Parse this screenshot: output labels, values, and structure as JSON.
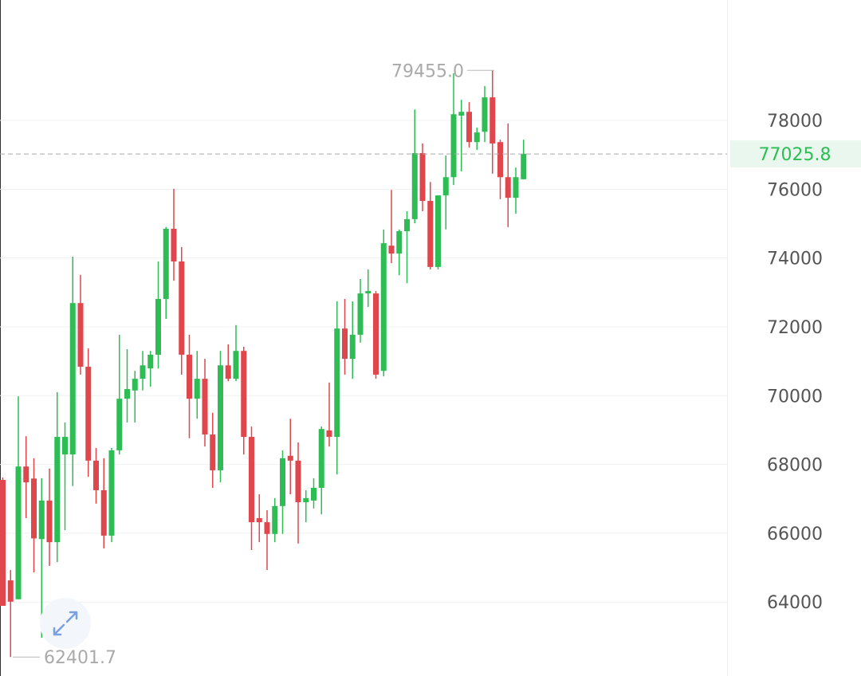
{
  "chart_data": {
    "type": "candlestick",
    "open": [
      67550,
      64630,
      64080,
      67940,
      67590,
      65830,
      66950,
      65740,
      68290,
      68290,
      72690,
      70840,
      68110,
      67250,
      65930,
      68410,
      69910,
      70150,
      70490,
      70790,
      71190,
      72810,
      74850,
      73900,
      71190,
      69910,
      70490,
      68870,
      67830,
      70880,
      70490,
      71300,
      68800,
      66440,
      66320,
      65980,
      66790,
      68250,
      68110,
      66900,
      66950,
      67320,
      68990,
      68800,
      71950,
      71070,
      71770,
      72970,
      72970,
      70720,
      74360,
      74130,
      74780,
      75130,
      77050,
      75660,
      73740,
      75820,
      76350,
      78140,
      78250,
      77370,
      77670,
      78670,
      77370,
      76350,
      75750,
      76290
    ],
    "high": [
      67620,
      64930,
      69980,
      68820,
      68180,
      67600,
      67880,
      70100,
      69220,
      74040,
      73510,
      71370,
      68480,
      68180,
      68480,
      71770,
      71350,
      70720,
      71300,
      71300,
      73900,
      74900,
      76010,
      74320,
      71770,
      71300,
      71070,
      69500,
      71300,
      71490,
      72050,
      71420,
      69100,
      67130,
      66670,
      67020,
      68410,
      69330,
      68640,
      67250,
      67600,
      69100,
      70380,
      72740,
      72810,
      72740,
      73390,
      73670,
      73040,
      74830,
      75980,
      74830,
      75360,
      78320,
      77330,
      76210,
      75820,
      76980,
      79370,
      78600,
      78530,
      77790,
      79000,
      79455.0,
      77440,
      77910,
      76630,
      77440
    ],
    "low": [
      63890,
      62401.7,
      64080,
      66440,
      64860,
      62960,
      65050,
      65160,
      66090,
      67370,
      70610,
      67640,
      66860,
      65560,
      65740,
      68290,
      69220,
      69220,
      70150,
      70260,
      70790,
      72230,
      73340,
      70610,
      68760,
      69330,
      68520,
      67320,
      67480,
      70420,
      70420,
      68290,
      65510,
      65740,
      64930,
      65740,
      65980,
      67130,
      65700,
      66320,
      66720,
      66550,
      68520,
      67710,
      70610,
      70490,
      71540,
      72580,
      70490,
      70560,
      73850,
      73500,
      73270,
      75010,
      75360,
      73670,
      73670,
      74830,
      76120,
      76520,
      77210,
      77140,
      77370,
      76450,
      75710,
      74900,
      75290,
      76290
    ],
    "close": [
      63890,
      64010,
      67940,
      67480,
      65850,
      66950,
      65740,
      68800,
      68800,
      72690,
      70840,
      68110,
      67250,
      65930,
      68410,
      69910,
      70190,
      70490,
      70880,
      71190,
      72810,
      74850,
      73900,
      71190,
      69910,
      70490,
      68870,
      67830,
      70880,
      70490,
      71300,
      68800,
      66320,
      66320,
      65980,
      66790,
      68180,
      68110,
      66900,
      67020,
      67320,
      69030,
      68800,
      71950,
      71070,
      71770,
      72970,
      73040,
      70610,
      74430,
      74130,
      74780,
      75130,
      77050,
      75660,
      73740,
      75820,
      76350,
      78180,
      78250,
      77370,
      77650,
      78670,
      77330,
      76350,
      75750,
      76350,
      77025.8
    ],
    "up_color": "#2ebd55",
    "down_color": "#e0474c",
    "ylim": [
      61850,
      81500
    ],
    "yticks": [
      64000,
      66000,
      68000,
      70000,
      72000,
      74000,
      76000,
      78000
    ],
    "grid": true,
    "high_label": {
      "value": 79455.0,
      "label": "79455.0"
    },
    "low_label": {
      "value": 62401.7,
      "label": "62401.7"
    },
    "last_price": {
      "value": 77025.8,
      "label": "77025.8"
    }
  }
}
